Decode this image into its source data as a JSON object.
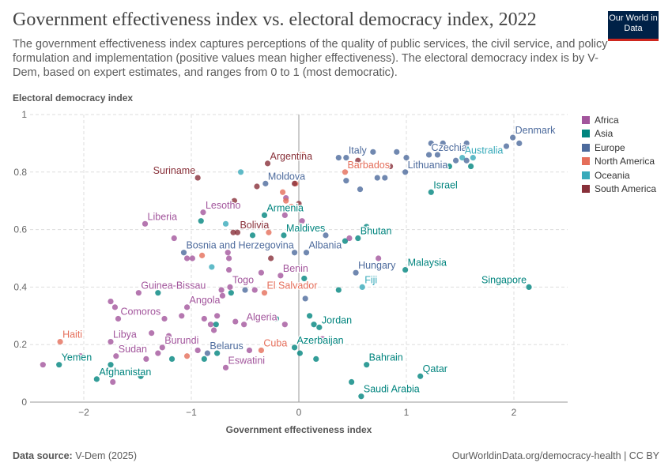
{
  "header": {
    "title": "Government effectiveness index vs. electoral democracy index, 2022",
    "subtitle": "The government effectiveness index captures perceptions of the quality of public services, the civil service, and policy formulation and implementation (positive values mean higher effectiveness). The electoral democracy index is by V-Dem, based on expert estimates, and ranges from 0 to 1 (most democratic).",
    "logo": "Our World in Data"
  },
  "footer": {
    "source_label": "Data source:",
    "source": "V-Dem (2025)",
    "right": "OurWorldinData.org/democracy-health | CC BY"
  },
  "chart_data": {
    "type": "scatter",
    "xlabel": "Government effectiveness index",
    "ylabel": "Electoral democracy index",
    "xlim": [
      -2.5,
      2.5
    ],
    "ylim": [
      0,
      1
    ],
    "xticks": [
      -2,
      -1,
      0,
      1,
      2
    ],
    "yticks": [
      0,
      0.2,
      0.4,
      0.6,
      0.8,
      1
    ],
    "grid": true,
    "legend_position": "right",
    "series": [
      {
        "name": "Africa",
        "color": "#a2559c"
      },
      {
        "name": "Asia",
        "color": "#00847e"
      },
      {
        "name": "Europe",
        "color": "#4c6a9c"
      },
      {
        "name": "North America",
        "color": "#e56e5a"
      },
      {
        "name": "Oceania",
        "color": "#38aaba"
      },
      {
        "name": "South America",
        "color": "#883039"
      }
    ],
    "points": [
      {
        "label": "Denmark",
        "region": "Europe",
        "x": 1.99,
        "y": 0.92
      },
      {
        "label": "Czechia",
        "region": "Europe",
        "x": 1.21,
        "y": 0.86
      },
      {
        "label": "Australia",
        "region": "Oceania",
        "x": 1.52,
        "y": 0.85
      },
      {
        "label": "Italy",
        "region": "Europe",
        "x": 0.44,
        "y": 0.85
      },
      {
        "label": "Barbados",
        "region": "North America",
        "x": 0.43,
        "y": 0.8
      },
      {
        "label": "Lithuania",
        "region": "Europe",
        "x": 0.99,
        "y": 0.8
      },
      {
        "label": "Israel",
        "region": "Asia",
        "x": 1.23,
        "y": 0.73
      },
      {
        "label": "Argentina",
        "region": "South America",
        "x": -0.29,
        "y": 0.83
      },
      {
        "label": "Suriname",
        "region": "South America",
        "x": -0.94,
        "y": 0.78
      },
      {
        "label": "Moldova",
        "region": "Europe",
        "x": -0.31,
        "y": 0.76
      },
      {
        "label": "Lesotho",
        "region": "Africa",
        "x": -0.89,
        "y": 0.66
      },
      {
        "label": "Liberia",
        "region": "Africa",
        "x": -1.43,
        "y": 0.62
      },
      {
        "label": "Armenia",
        "region": "Asia",
        "x": -0.32,
        "y": 0.65
      },
      {
        "label": "Bolivia",
        "region": "South America",
        "x": -0.57,
        "y": 0.59
      },
      {
        "label": "Maldives",
        "region": "Asia",
        "x": -0.14,
        "y": 0.58
      },
      {
        "label": "Bhutan",
        "region": "Asia",
        "x": 0.55,
        "y": 0.57
      },
      {
        "label": "Albania",
        "region": "Europe",
        "x": 0.07,
        "y": 0.52
      },
      {
        "label": "Bosnia and Herzegovina",
        "region": "Europe",
        "x": -1.07,
        "y": 0.52
      },
      {
        "label": "Hungary",
        "region": "Europe",
        "x": 0.53,
        "y": 0.45
      },
      {
        "label": "Malaysia",
        "region": "Asia",
        "x": 0.99,
        "y": 0.46
      },
      {
        "label": "Benin",
        "region": "Africa",
        "x": -0.17,
        "y": 0.44
      },
      {
        "label": "Togo",
        "region": "Africa",
        "x": -0.64,
        "y": 0.4
      },
      {
        "label": "Fiji",
        "region": "Oceania",
        "x": 0.59,
        "y": 0.4
      },
      {
        "label": "Singapore",
        "region": "Asia",
        "x": 2.14,
        "y": 0.4
      },
      {
        "label": "El Salvador",
        "region": "North America",
        "x": -0.32,
        "y": 0.38
      },
      {
        "label": "Guinea-Bissau",
        "region": "Africa",
        "x": -1.49,
        "y": 0.38
      },
      {
        "label": "Angola",
        "region": "Africa",
        "x": -1.04,
        "y": 0.33
      },
      {
        "label": "Comoros",
        "region": "Africa",
        "x": -1.68,
        "y": 0.29
      },
      {
        "label": "Jordan",
        "region": "Asia",
        "x": 0.19,
        "y": 0.26
      },
      {
        "label": "Algeria",
        "region": "Africa",
        "x": -0.51,
        "y": 0.27
      },
      {
        "label": "Haiti",
        "region": "North America",
        "x": -2.22,
        "y": 0.21
      },
      {
        "label": "Libya",
        "region": "Africa",
        "x": -1.75,
        "y": 0.21
      },
      {
        "label": "Burundi",
        "region": "Africa",
        "x": -1.27,
        "y": 0.19
      },
      {
        "label": "Belarus",
        "region": "Europe",
        "x": -0.85,
        "y": 0.17
      },
      {
        "label": "Cuba",
        "region": "North America",
        "x": -0.35,
        "y": 0.18
      },
      {
        "label": "Azerbaijan",
        "region": "Asia",
        "x": -0.04,
        "y": 0.19
      },
      {
        "label": "Sudan",
        "region": "Africa",
        "x": -1.7,
        "y": 0.16
      },
      {
        "label": "Yemen",
        "region": "Asia",
        "x": -2.23,
        "y": 0.13
      },
      {
        "label": "Eswatini",
        "region": "Africa",
        "x": -0.68,
        "y": 0.12
      },
      {
        "label": "Afghanistan",
        "region": "Asia",
        "x": -1.88,
        "y": 0.08
      },
      {
        "label": "Bahrain",
        "region": "Asia",
        "x": 0.63,
        "y": 0.13
      },
      {
        "label": "Qatar",
        "region": "Asia",
        "x": 1.13,
        "y": 0.09
      },
      {
        "label": "Saudi Arabia",
        "region": "Asia",
        "x": 0.58,
        "y": 0.02
      },
      {
        "region": "Europe",
        "x": 0.37,
        "y": 0.85
      },
      {
        "region": "Europe",
        "x": 0.69,
        "y": 0.87
      },
      {
        "region": "Europe",
        "x": 0.91,
        "y": 0.87
      },
      {
        "region": "Europe",
        "x": 1.0,
        "y": 0.85
      },
      {
        "region": "Europe",
        "x": 1.23,
        "y": 0.9
      },
      {
        "region": "Europe",
        "x": 1.34,
        "y": 0.9
      },
      {
        "region": "Europe",
        "x": 1.29,
        "y": 0.86
      },
      {
        "region": "Europe",
        "x": 1.46,
        "y": 0.84
      },
      {
        "region": "Europe",
        "x": 1.56,
        "y": 0.9
      },
      {
        "region": "Europe",
        "x": 1.56,
        "y": 0.84
      },
      {
        "region": "Europe",
        "x": 1.93,
        "y": 0.89
      },
      {
        "region": "Europe",
        "x": 2.05,
        "y": 0.9
      },
      {
        "region": "Europe",
        "x": 0.44,
        "y": 0.77
      },
      {
        "region": "Europe",
        "x": 0.57,
        "y": 0.74
      },
      {
        "region": "Europe",
        "x": 0.73,
        "y": 0.78
      },
      {
        "region": "Europe",
        "x": 0.8,
        "y": 0.78
      },
      {
        "region": "Europe",
        "x": 0.25,
        "y": 0.58
      },
      {
        "region": "Europe",
        "x": -0.04,
        "y": 0.52
      },
      {
        "region": "Europe",
        "x": 0.06,
        "y": 0.36
      },
      {
        "region": "Europe",
        "x": -0.5,
        "y": 0.39
      },
      {
        "region": "Asia",
        "x": 1.4,
        "y": 0.82
      },
      {
        "region": "Asia",
        "x": 1.6,
        "y": 0.82
      },
      {
        "region": "Asia",
        "x": 0.05,
        "y": 0.43
      },
      {
        "region": "Asia",
        "x": 0.37,
        "y": 0.39
      },
      {
        "region": "Asia",
        "x": 0.63,
        "y": 0.61
      },
      {
        "region": "Asia",
        "x": 0.43,
        "y": 0.56
      },
      {
        "region": "Asia",
        "x": 0.1,
        "y": 0.3
      },
      {
        "region": "Asia",
        "x": 0.14,
        "y": 0.27
      },
      {
        "region": "Asia",
        "x": 0.16,
        "y": 0.15
      },
      {
        "region": "Asia",
        "x": 0.01,
        "y": 0.17
      },
      {
        "region": "Asia",
        "x": 0.49,
        "y": 0.07
      },
      {
        "region": "Asia",
        "x": -0.21,
        "y": 0.29
      },
      {
        "region": "Asia",
        "x": -0.43,
        "y": 0.58
      },
      {
        "region": "Asia",
        "x": -0.91,
        "y": 0.63
      },
      {
        "region": "Asia",
        "x": -1.31,
        "y": 0.38
      },
      {
        "region": "Asia",
        "x": -1.18,
        "y": 0.15
      },
      {
        "region": "Asia",
        "x": -0.88,
        "y": 0.15
      },
      {
        "region": "Asia",
        "x": -0.76,
        "y": 0.17
      },
      {
        "region": "Asia",
        "x": -0.77,
        "y": 0.27
      },
      {
        "region": "Asia",
        "x": -0.63,
        "y": 0.38
      },
      {
        "region": "Asia",
        "x": -1.47,
        "y": 0.09
      },
      {
        "region": "Asia",
        "x": -1.75,
        "y": 0.13
      },
      {
        "region": "Africa",
        "x": -1.16,
        "y": 0.57
      },
      {
        "region": "Africa",
        "x": -1.04,
        "y": 0.5
      },
      {
        "region": "Africa",
        "x": -0.99,
        "y": 0.5
      },
      {
        "region": "Africa",
        "x": -0.65,
        "y": 0.5
      },
      {
        "region": "Africa",
        "x": -0.66,
        "y": 0.52
      },
      {
        "region": "Africa",
        "x": -0.65,
        "y": 0.46
      },
      {
        "region": "Africa",
        "x": -0.35,
        "y": 0.45
      },
      {
        "region": "Africa",
        "x": -0.13,
        "y": 0.65
      },
      {
        "region": "Africa",
        "x": 0.03,
        "y": 0.63
      },
      {
        "region": "Africa",
        "x": 0.47,
        "y": 0.57
      },
      {
        "region": "Africa",
        "x": 0.74,
        "y": 0.5
      },
      {
        "region": "Africa",
        "x": -1.75,
        "y": 0.35
      },
      {
        "region": "Africa",
        "x": -1.71,
        "y": 0.33
      },
      {
        "region": "Africa",
        "x": -1.25,
        "y": 0.29
      },
      {
        "region": "Africa",
        "x": -1.09,
        "y": 0.3
      },
      {
        "region": "Africa",
        "x": -0.88,
        "y": 0.29
      },
      {
        "region": "Africa",
        "x": -0.82,
        "y": 0.27
      },
      {
        "region": "Africa",
        "x": -0.76,
        "y": 0.3
      },
      {
        "region": "Africa",
        "x": -0.79,
        "y": 0.25
      },
      {
        "region": "Africa",
        "x": -0.59,
        "y": 0.28
      },
      {
        "region": "Africa",
        "x": -0.13,
        "y": 0.27
      },
      {
        "region": "Africa",
        "x": -1.37,
        "y": 0.24
      },
      {
        "region": "Africa",
        "x": -1.21,
        "y": 0.23
      },
      {
        "region": "Africa",
        "x": -1.31,
        "y": 0.17
      },
      {
        "region": "Africa",
        "x": -0.94,
        "y": 0.18
      },
      {
        "region": "Africa",
        "x": -0.46,
        "y": 0.18
      },
      {
        "region": "Africa",
        "x": -1.42,
        "y": 0.15
      },
      {
        "region": "Africa",
        "x": -1.73,
        "y": 0.07
      },
      {
        "region": "Africa",
        "x": -2.03,
        "y": 0.16
      },
      {
        "region": "Africa",
        "x": -2.38,
        "y": 0.13
      },
      {
        "region": "Africa",
        "x": 0.22,
        "y": 0.22
      },
      {
        "region": "Africa",
        "x": -0.72,
        "y": 0.39
      },
      {
        "region": "Africa",
        "x": -0.71,
        "y": 0.37
      },
      {
        "region": "Africa",
        "x": -0.41,
        "y": 0.39
      },
      {
        "region": "Africa",
        "x": -0.12,
        "y": 0.71
      },
      {
        "region": "North America",
        "x": -0.15,
        "y": 0.73
      },
      {
        "region": "North America",
        "x": -0.12,
        "y": 0.7
      },
      {
        "region": "North America",
        "x": -0.07,
        "y": 0.68
      },
      {
        "region": "North America",
        "x": -0.28,
        "y": 0.59
      },
      {
        "region": "North America",
        "x": -0.9,
        "y": 0.51
      },
      {
        "region": "North America",
        "x": -1.04,
        "y": 0.16
      },
      {
        "region": "North America",
        "x": -0.03,
        "y": 0.76
      },
      {
        "region": "North America",
        "x": 0.04,
        "y": 0.86
      },
      {
        "region": "South America",
        "x": -0.39,
        "y": 0.75
      },
      {
        "region": "South America",
        "x": -0.6,
        "y": 0.7
      },
      {
        "region": "South America",
        "x": -0.61,
        "y": 0.59
      },
      {
        "region": "South America",
        "x": -0.26,
        "y": 0.5
      },
      {
        "region": "South America",
        "x": 0.0,
        "y": 0.69
      },
      {
        "region": "South America",
        "x": 0.55,
        "y": 0.84
      },
      {
        "region": "South America",
        "x": 0.85,
        "y": 0.82
      },
      {
        "region": "South America",
        "x": -0.04,
        "y": 0.76
      },
      {
        "region": "Oceania",
        "x": -0.54,
        "y": 0.8
      },
      {
        "region": "Oceania",
        "x": -0.68,
        "y": 0.62
      },
      {
        "region": "Oceania",
        "x": -0.81,
        "y": 0.47
      },
      {
        "region": "Oceania",
        "x": 1.62,
        "y": 0.85
      }
    ]
  }
}
